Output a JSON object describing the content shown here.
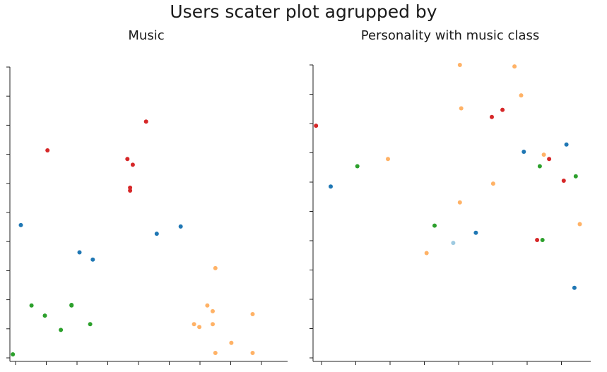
{
  "title": "Users scater plot agrupped by",
  "colors": {
    "red": "#d62728",
    "blue": "#1f77b4",
    "green": "#2ca02c",
    "orange": "#ffb266",
    "lightblue": "#9ecae1",
    "axis": "#222222"
  },
  "chart_data": [
    {
      "type": "scatter",
      "title": "Music",
      "xlabel": "",
      "ylabel": "",
      "xlim": [
        0,
        10
      ],
      "ylim": [
        0,
        10
      ],
      "grid": false,
      "legend": "none",
      "tick_labels": "none",
      "series": [
        {
          "color": "red",
          "points": [
            [
              1.2,
              7.1
            ],
            [
              4.9,
              8.1
            ],
            [
              4.2,
              6.8
            ],
            [
              4.4,
              6.6
            ],
            [
              4.3,
              5.8
            ],
            [
              4.3,
              5.7
            ]
          ]
        },
        {
          "color": "blue",
          "points": [
            [
              0.2,
              4.5
            ],
            [
              2.4,
              3.55
            ],
            [
              2.9,
              3.3
            ],
            [
              5.3,
              4.2
            ],
            [
              6.2,
              4.45
            ]
          ]
        },
        {
          "color": "green",
          "points": [
            [
              -0.1,
              0.0
            ],
            [
              0.6,
              1.7
            ],
            [
              1.1,
              1.35
            ],
            [
              1.7,
              0.85
            ],
            [
              2.1,
              1.7
            ],
            [
              2.1,
              1.72
            ],
            [
              2.8,
              1.05
            ]
          ]
        },
        {
          "color": "orange",
          "points": [
            [
              7.5,
              3.0
            ],
            [
              7.2,
              1.7
            ],
            [
              7.4,
              1.5
            ],
            [
              6.7,
              1.05
            ],
            [
              6.9,
              0.95
            ],
            [
              7.4,
              1.05
            ],
            [
              7.5,
              0.05
            ],
            [
              8.1,
              0.4
            ],
            [
              8.9,
              1.4
            ],
            [
              8.9,
              0.05
            ]
          ]
        }
      ]
    },
    {
      "type": "scatter",
      "title": "Personality with music class",
      "xlabel": "",
      "ylabel": "",
      "xlim": [
        0,
        10
      ],
      "ylim": [
        0,
        10
      ],
      "grid": false,
      "legend": "none",
      "tick_labels": "none",
      "series": [
        {
          "color": "red",
          "points": [
            [
              -0.1,
              7.9
            ],
            [
              6.5,
              8.2
            ],
            [
              6.9,
              8.45
            ],
            [
              8.65,
              6.75
            ],
            [
              9.2,
              6.0
            ],
            [
              8.2,
              3.95
            ]
          ]
        },
        {
          "color": "blue",
          "points": [
            [
              0.45,
              5.8
            ],
            [
              5.9,
              4.2
            ],
            [
              7.7,
              7.0
            ],
            [
              9.3,
              7.25
            ],
            [
              9.6,
              2.3
            ]
          ]
        },
        {
          "color": "green",
          "points": [
            [
              1.45,
              6.5
            ],
            [
              4.35,
              4.45
            ],
            [
              8.3,
              6.5
            ],
            [
              8.4,
              3.95
            ],
            [
              9.65,
              6.15
            ]
          ]
        },
        {
          "color": "orange",
          "points": [
            [
              2.6,
              6.75
            ],
            [
              5.3,
              10.0
            ],
            [
              5.35,
              8.5
            ],
            [
              5.3,
              5.25
            ],
            [
              4.05,
              3.5
            ],
            [
              6.55,
              5.9
            ],
            [
              7.35,
              9.95
            ],
            [
              7.6,
              8.95
            ],
            [
              8.45,
              6.9
            ],
            [
              9.8,
              4.5
            ]
          ]
        },
        {
          "color": "lightblue",
          "points": [
            [
              5.05,
              3.85
            ]
          ]
        }
      ]
    }
  ]
}
